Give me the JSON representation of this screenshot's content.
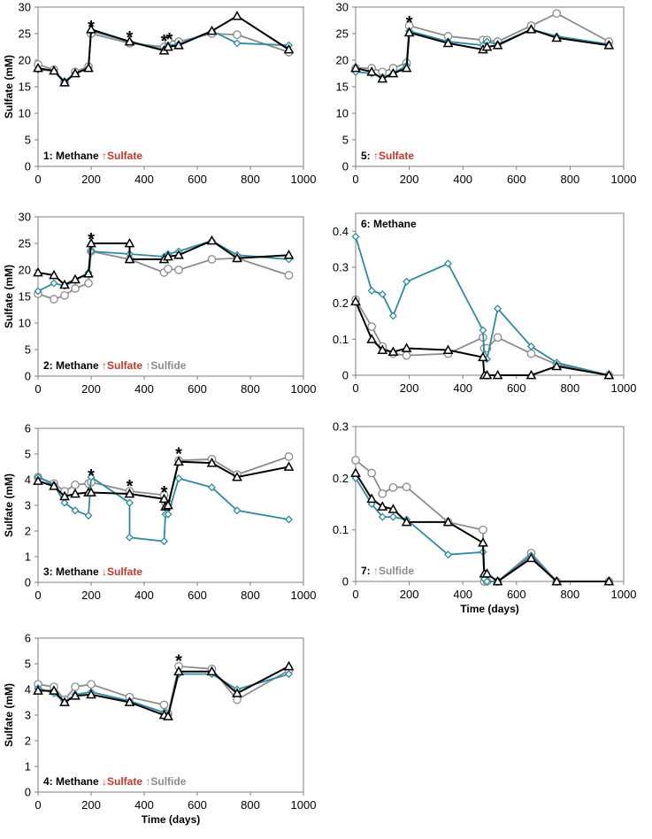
{
  "figure": {
    "colors": {
      "teal": "#2e8b9f",
      "gray": "#8c8c8c",
      "black": "#000000",
      "red": "#c0392b"
    },
    "legend_markers": {
      "teal": "diamond",
      "gray": "circle",
      "black": "triangle"
    }
  },
  "chart_data": [
    {
      "id": "p1",
      "type": "line",
      "title_parts": [
        {
          "text": "1: Methane ",
          "color": "#000000"
        },
        {
          "text": "↑Sulfate",
          "color": "#c0392b"
        }
      ],
      "xlabel": "",
      "ylabel": "Sulfate (mM)",
      "xlim": [
        0,
        1000
      ],
      "ylim": [
        0,
        30
      ],
      "xticks": [
        0,
        200,
        400,
        600,
        800,
        1000
      ],
      "yticks": [
        0,
        5,
        10,
        15,
        20,
        25,
        30
      ],
      "ytick_labels": [
        "0",
        "5",
        "10",
        "15",
        "20",
        "25",
        "30"
      ],
      "series": [
        {
          "name": "teal",
          "marker": "diamond",
          "color": "#2e8b9f",
          "x": [
            0,
            60,
            100,
            140,
            190,
            200,
            345,
            475,
            490,
            530,
            655,
            750,
            945
          ],
          "y": [
            18.2,
            18,
            16,
            17.5,
            18.5,
            25.5,
            23.5,
            22,
            22.8,
            23,
            25.5,
            23.2,
            22.8
          ]
        },
        {
          "name": "gray",
          "marker": "circle",
          "color": "#8c8c8c",
          "x": [
            0,
            60,
            100,
            140,
            190,
            200,
            345,
            475,
            490,
            530,
            655,
            750,
            945
          ],
          "y": [
            19.2,
            18.2,
            15.8,
            17.8,
            18.8,
            25,
            23.2,
            22.5,
            23.8,
            23.5,
            25,
            24.8,
            21.5
          ]
        },
        {
          "name": "black",
          "marker": "triangle",
          "color": "#000000",
          "x": [
            0,
            60,
            100,
            140,
            190,
            200,
            345,
            475,
            490,
            530,
            655,
            750,
            945
          ],
          "y": [
            18.5,
            18,
            15.8,
            17.5,
            18.5,
            25.8,
            23.5,
            21.8,
            22.5,
            22.8,
            25.5,
            28.3,
            22
          ]
        }
      ],
      "annotations": [
        {
          "text": "*",
          "x": 200,
          "y": 26.5
        },
        {
          "text": "*",
          "x": 345,
          "y": 24.5
        },
        {
          "text": "*",
          "x": 475,
          "y": 23.8
        },
        {
          "text": "*",
          "x": 495,
          "y": 24.2
        }
      ]
    },
    {
      "id": "p2",
      "type": "line",
      "title_parts": [
        {
          "text": "2: Methane ",
          "color": "#000000"
        },
        {
          "text": "↑Sulfate ",
          "color": "#c0392b"
        },
        {
          "text": "↑Sulfide",
          "color": "#8c8c8c"
        }
      ],
      "xlabel": "",
      "ylabel": "Sulfate (mM)",
      "xlim": [
        0,
        1000
      ],
      "ylim": [
        0,
        30
      ],
      "xticks": [
        0,
        200,
        400,
        600,
        800,
        1000
      ],
      "yticks": [
        0,
        5,
        10,
        15,
        20,
        25,
        30
      ],
      "ytick_labels": [
        "0",
        "5",
        "10",
        "15",
        "20",
        "25",
        "30"
      ],
      "series": [
        {
          "name": "teal",
          "marker": "diamond",
          "color": "#2e8b9f",
          "x": [
            0,
            60,
            100,
            140,
            190,
            200,
            345,
            475,
            490,
            530,
            655,
            750,
            945
          ],
          "y": [
            16,
            17.5,
            17,
            18,
            19.5,
            23.5,
            23,
            22.5,
            23,
            23.5,
            25.5,
            22.8,
            22
          ]
        },
        {
          "name": "gray",
          "marker": "circle",
          "color": "#8c8c8c",
          "x": [
            0,
            60,
            100,
            140,
            190,
            200,
            345,
            475,
            490,
            530,
            655,
            750,
            945
          ],
          "y": [
            15.5,
            14.5,
            15.2,
            16.5,
            17.5,
            23.5,
            22,
            19.5,
            20.2,
            20,
            22,
            22.2,
            19
          ]
        },
        {
          "name": "black",
          "marker": "triangle",
          "color": "#000000",
          "x": [
            0,
            60,
            100,
            140,
            190,
            200,
            345,
            345,
            475,
            490,
            530,
            655,
            750,
            945
          ],
          "y": [
            19.5,
            19,
            17.2,
            18.2,
            19.3,
            25,
            25,
            22,
            22,
            22.5,
            22.8,
            25.5,
            22.2,
            22.8
          ]
        }
      ],
      "annotations": [
        {
          "text": "*",
          "x": 200,
          "y": 26
        }
      ]
    },
    {
      "id": "p3",
      "type": "line",
      "title_parts": [
        {
          "text": "3: Methane ",
          "color": "#000000"
        },
        {
          "text": "↓Sulfate",
          "color": "#c0392b"
        }
      ],
      "xlabel": "",
      "ylabel": "Sulfate (mM)",
      "xlim": [
        0,
        1000
      ],
      "ylim": [
        0,
        6
      ],
      "xticks": [
        0,
        200,
        400,
        600,
        800,
        1000
      ],
      "yticks": [
        0,
        1,
        2,
        3,
        4,
        5,
        6
      ],
      "ytick_labels": [
        "0",
        "1",
        "2",
        "3",
        "4",
        "5",
        "6"
      ],
      "series": [
        {
          "name": "teal",
          "marker": "diamond",
          "color": "#2e8b9f",
          "x": [
            0,
            60,
            100,
            140,
            190,
            200,
            345,
            345,
            475,
            480,
            490,
            530,
            655,
            750,
            945
          ],
          "y": [
            4.1,
            3.8,
            3.1,
            2.8,
            2.6,
            4.1,
            3.1,
            1.75,
            1.6,
            2.65,
            2.65,
            4.05,
            3.7,
            2.8,
            2.45
          ]
        },
        {
          "name": "gray",
          "marker": "circle",
          "color": "#8c8c8c",
          "x": [
            0,
            60,
            100,
            140,
            190,
            200,
            345,
            475,
            480,
            490,
            530,
            655,
            750,
            945
          ],
          "y": [
            4.1,
            3.85,
            3.55,
            3.8,
            3.85,
            3.9,
            3.55,
            3.4,
            3.1,
            3.05,
            4.75,
            4.8,
            4.2,
            4.9
          ]
        },
        {
          "name": "black",
          "marker": "triangle",
          "color": "#000000",
          "x": [
            0,
            60,
            100,
            140,
            190,
            200,
            345,
            475,
            480,
            490,
            530,
            655,
            750,
            945
          ],
          "y": [
            3.95,
            3.75,
            3.35,
            3.45,
            3.5,
            3.5,
            3.45,
            3.25,
            2.95,
            3.0,
            4.7,
            4.65,
            4.1,
            4.5
          ]
        }
      ],
      "annotations": [
        {
          "text": "*",
          "x": 200,
          "y": 4.2
        },
        {
          "text": "*",
          "x": 345,
          "y": 3.8
        },
        {
          "text": "*",
          "x": 475,
          "y": 3.55
        },
        {
          "text": "*",
          "x": 530,
          "y": 5.05
        }
      ]
    },
    {
      "id": "p4",
      "type": "line",
      "title_parts": [
        {
          "text": "4: Methane ",
          "color": "#000000"
        },
        {
          "text": "↓Sulfate ",
          "color": "#c0392b"
        },
        {
          "text": "↑Sulfide",
          "color": "#8c8c8c"
        }
      ],
      "xlabel": "Time (days)",
      "ylabel": "Sulfate (mM)",
      "xlim": [
        0,
        1000
      ],
      "ylim": [
        0,
        6
      ],
      "xticks": [
        0,
        200,
        400,
        600,
        800,
        1000
      ],
      "yticks": [
        0,
        1,
        2,
        3,
        4,
        5,
        6
      ],
      "ytick_labels": [
        "0",
        "1",
        "2",
        "3",
        "4",
        "5",
        "6"
      ],
      "series": [
        {
          "name": "teal",
          "marker": "diamond",
          "color": "#2e8b9f",
          "x": [
            0,
            60,
            100,
            140,
            200,
            345,
            475,
            490,
            530,
            655,
            750,
            945
          ],
          "y": [
            4.05,
            3.85,
            3.5,
            3.8,
            3.9,
            3.55,
            3.1,
            3.0,
            4.6,
            4.6,
            4.0,
            4.6
          ]
        },
        {
          "name": "gray",
          "marker": "circle",
          "color": "#8c8c8c",
          "x": [
            0,
            60,
            100,
            140,
            200,
            345,
            475,
            490,
            530,
            655,
            750,
            945
          ],
          "y": [
            4.2,
            4.1,
            3.6,
            4.1,
            4.2,
            3.7,
            3.4,
            3.05,
            4.9,
            4.8,
            3.6,
            4.75
          ]
        },
        {
          "name": "black",
          "marker": "triangle",
          "color": "#000000",
          "x": [
            0,
            60,
            100,
            140,
            200,
            345,
            475,
            490,
            530,
            655,
            750,
            945
          ],
          "y": [
            3.95,
            3.95,
            3.5,
            3.75,
            3.8,
            3.5,
            3.0,
            2.95,
            4.7,
            4.7,
            3.85,
            4.9
          ]
        }
      ],
      "annotations": [
        {
          "text": "*",
          "x": 530,
          "y": 5.15
        }
      ]
    },
    {
      "id": "p5",
      "type": "line",
      "title_parts": [
        {
          "text": "5: ",
          "color": "#000000"
        },
        {
          "text": "↑Sulfate",
          "color": "#c0392b"
        }
      ],
      "xlabel": "",
      "ylabel": "",
      "xlim": [
        0,
        1000
      ],
      "ylim": [
        0,
        30
      ],
      "xticks": [
        0,
        200,
        400,
        600,
        800,
        1000
      ],
      "yticks": [
        0,
        5,
        10,
        15,
        20,
        25,
        30
      ],
      "ytick_labels": [
        "0",
        "5",
        "10",
        "15",
        "20",
        "25",
        "30"
      ],
      "series": [
        {
          "name": "teal",
          "marker": "diamond",
          "color": "#2e8b9f",
          "x": [
            0,
            60,
            100,
            140,
            190,
            200,
            345,
            475,
            490,
            530,
            655,
            750,
            945
          ],
          "y": [
            17.8,
            17.5,
            16.8,
            17.5,
            19,
            25.5,
            23.5,
            22.8,
            23.5,
            23,
            25.8,
            24.5,
            23
          ]
        },
        {
          "name": "gray",
          "marker": "circle",
          "color": "#8c8c8c",
          "x": [
            0,
            60,
            100,
            140,
            190,
            200,
            345,
            475,
            490,
            530,
            655,
            750,
            945
          ],
          "y": [
            18.5,
            18.5,
            17.8,
            18.5,
            19.5,
            26.5,
            24.5,
            23.8,
            23.8,
            23.5,
            26.5,
            28.8,
            23.5
          ]
        },
        {
          "name": "black",
          "marker": "triangle",
          "color": "#000000",
          "x": [
            0,
            60,
            100,
            140,
            190,
            200,
            345,
            475,
            490,
            530,
            655,
            750,
            945
          ],
          "y": [
            18.5,
            17.8,
            16.5,
            17.5,
            18.5,
            25.2,
            23.2,
            22,
            22.5,
            22.8,
            25.8,
            24.2,
            22.8
          ]
        }
      ],
      "annotations": [
        {
          "text": "*",
          "x": 200,
          "y": 27.3
        }
      ]
    },
    {
      "id": "p6",
      "type": "line",
      "title_parts": [
        {
          "text": "6: Methane",
          "color": "#000000"
        }
      ],
      "xlabel": "",
      "ylabel": "",
      "xlim": [
        0,
        1000
      ],
      "ylim": [
        0,
        0.45
      ],
      "xticks": [
        0,
        200,
        400,
        600,
        800,
        1000
      ],
      "yticks": [
        0,
        0.1,
        0.2,
        0.3,
        0.4
      ],
      "ytick_labels": [
        "0",
        "0.1",
        "0.2",
        "0.3",
        "0.4"
      ],
      "series": [
        {
          "name": "teal",
          "marker": "diamond",
          "color": "#2e8b9f",
          "x": [
            0,
            60,
            100,
            140,
            190,
            345,
            475,
            480,
            490,
            530,
            655,
            750,
            945
          ],
          "y": [
            0.385,
            0.235,
            0.225,
            0.165,
            0.26,
            0.31,
            0.125,
            0.055,
            0.045,
            0.185,
            0.08,
            0.035,
            0
          ]
        },
        {
          "name": "gray",
          "marker": "circle",
          "color": "#8c8c8c",
          "x": [
            0,
            60,
            100,
            140,
            190,
            345,
            475,
            480,
            490,
            530,
            655,
            750,
            945
          ],
          "y": [
            0.21,
            0.135,
            0.08,
            0.06,
            0.055,
            0.06,
            0.105,
            0.075,
            0.075,
            0.105,
            0.06,
            0.03,
            0
          ]
        },
        {
          "name": "black",
          "marker": "triangle",
          "color": "#000000",
          "x": [
            0,
            60,
            100,
            140,
            190,
            345,
            475,
            480,
            490,
            530,
            655,
            750,
            945
          ],
          "y": [
            0.205,
            0.1,
            0.07,
            0.065,
            0.075,
            0.07,
            0.05,
            0,
            0,
            0,
            0,
            0.025,
            0
          ]
        }
      ],
      "annotations": []
    },
    {
      "id": "p7",
      "type": "line",
      "title_parts": [
        {
          "text": "7: ",
          "color": "#000000"
        },
        {
          "text": "↑Sulfide",
          "color": "#8c8c8c"
        }
      ],
      "xlabel": "Time (days)",
      "ylabel": "",
      "xlim": [
        0,
        1000
      ],
      "ylim": [
        0,
        0.3
      ],
      "xticks": [
        0,
        200,
        400,
        600,
        800,
        1000
      ],
      "yticks": [
        0,
        0.1,
        0.2,
        0.3
      ],
      "ytick_labels": [
        "0",
        "0.1",
        "0.2",
        "0.3"
      ],
      "series": [
        {
          "name": "teal",
          "marker": "diamond",
          "color": "#2e8b9f",
          "x": [
            0,
            60,
            100,
            140,
            190,
            345,
            475,
            480,
            490,
            530,
            655,
            750,
            945
          ],
          "y": [
            0.2,
            0.15,
            0.125,
            0.125,
            0.12,
            0.052,
            0.057,
            0.005,
            0,
            0,
            0.05,
            0,
            0
          ]
        },
        {
          "name": "gray",
          "marker": "circle",
          "color": "#8c8c8c",
          "x": [
            0,
            60,
            100,
            140,
            190,
            345,
            475,
            480,
            490,
            530,
            655,
            750,
            945
          ],
          "y": [
            0.235,
            0.21,
            0.17,
            0.182,
            0.183,
            0.115,
            0.1,
            0,
            0,
            0,
            0.055,
            0,
            0
          ]
        },
        {
          "name": "black",
          "marker": "triangle",
          "color": "#000000",
          "x": [
            0,
            60,
            100,
            140,
            190,
            345,
            475,
            480,
            490,
            530,
            655,
            750,
            945
          ],
          "y": [
            0.21,
            0.16,
            0.145,
            0.14,
            0.115,
            0.115,
            0.075,
            0.015,
            0.015,
            0,
            0.045,
            0,
            0
          ]
        }
      ],
      "annotations": []
    }
  ]
}
